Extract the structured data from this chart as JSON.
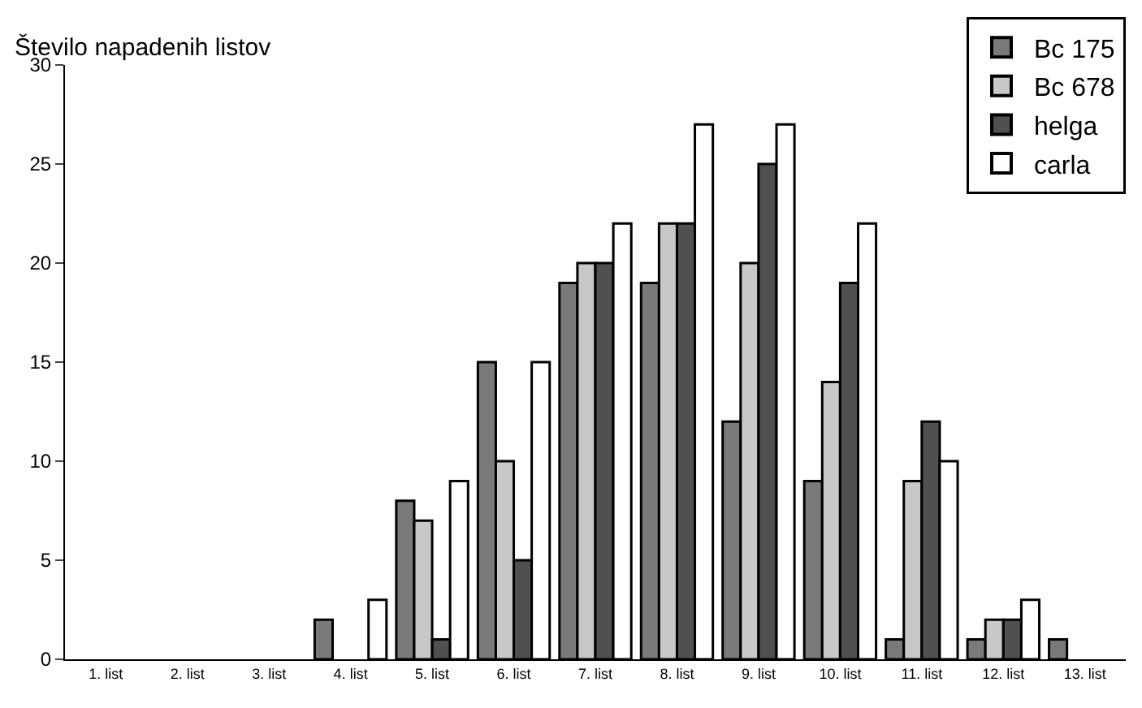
{
  "chart_data": {
    "type": "bar",
    "ylabel": "Število napadenih listov",
    "categories": [
      "1. list",
      "2. list",
      "3. list",
      "4. list",
      "5. list",
      "6. list",
      "7. list",
      "8. list",
      "9. list",
      "10. list",
      "11. list",
      "12. list",
      "13. list"
    ],
    "series": [
      {
        "name": "Bc 175",
        "color": "#7a7a7a",
        "values": [
          null,
          null,
          null,
          2,
          8,
          15,
          19,
          19,
          12,
          9,
          1,
          1,
          1
        ]
      },
      {
        "name": "Bc 678",
        "color": "#c8c8c8",
        "values": [
          null,
          null,
          null,
          null,
          7,
          10,
          20,
          22,
          20,
          14,
          9,
          2,
          null
        ]
      },
      {
        "name": "helga",
        "color": "#505050",
        "values": [
          null,
          null,
          null,
          null,
          1,
          5,
          20,
          22,
          25,
          19,
          12,
          2,
          null
        ]
      },
      {
        "name": "carla",
        "color": "#ffffff",
        "values": [
          null,
          null,
          null,
          3,
          9,
          15,
          22,
          27,
          27,
          22,
          10,
          3,
          null
        ]
      }
    ],
    "ylim": [
      0,
      30
    ],
    "yticks": [
      0,
      5,
      10,
      15,
      20,
      25,
      30
    ],
    "grid": false,
    "legend": "top right"
  }
}
